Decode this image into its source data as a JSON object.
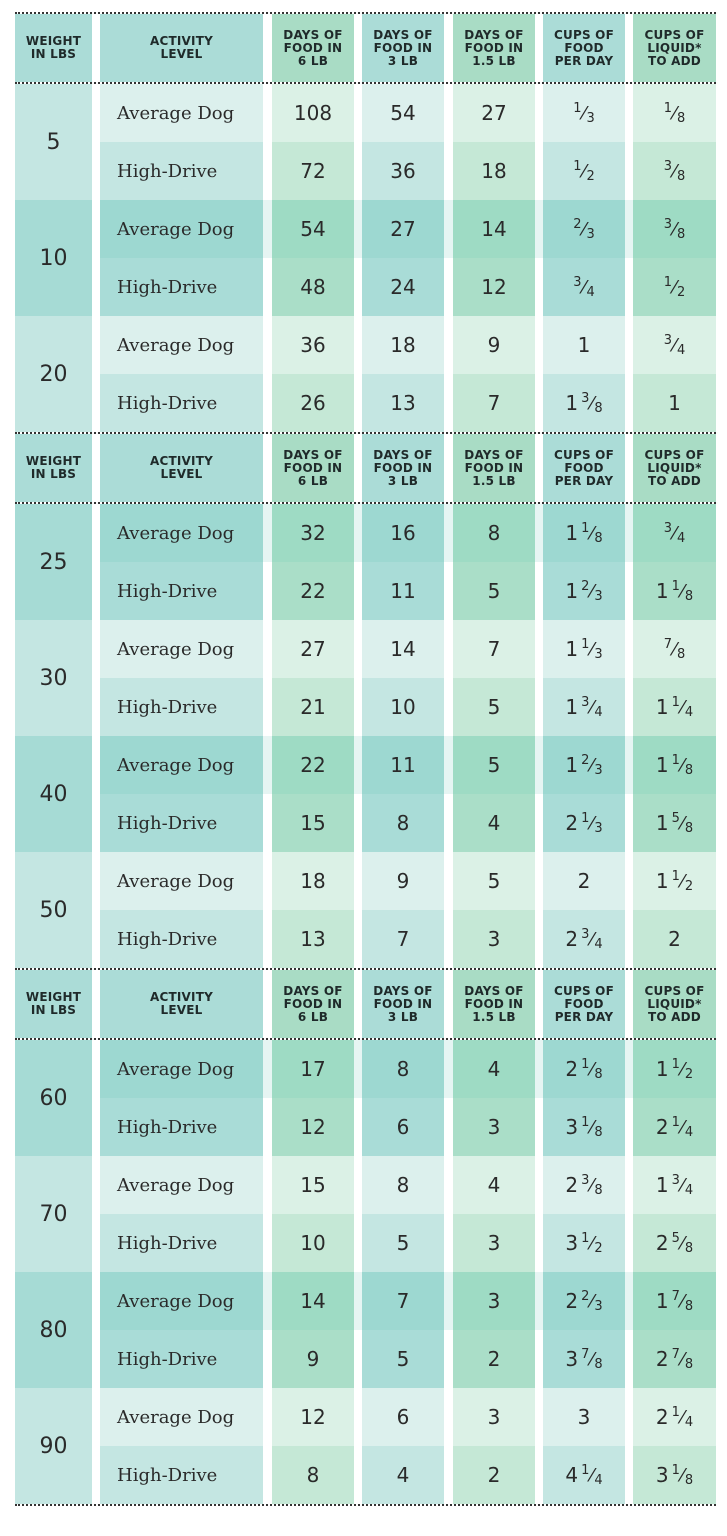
{
  "colors": {
    "teal_header": "#abdcd7",
    "green_header": "#a9dcc5",
    "teal_dark": "#9dd8d1",
    "teal_mid": "#a9dcd7",
    "teal_light": "#dcf0ed",
    "teal_light2": "#c4e6e2",
    "green_dark": "#9edbc4",
    "green_mid": "#aadec8",
    "green_light": "#dbf1e6",
    "green_light2": "#c5e8d6",
    "weight_dark": "#a6dbd5",
    "weight_light": "#c4e6e2"
  },
  "headers": {
    "weight": "WEIGHT IN LBS",
    "activity": "ACTIVITY LEVEL",
    "days_6lb": "DAYS OF FOOD IN 6 LB",
    "days_3lb": "DAYS OF FOOD IN 3 LB",
    "days_1_5lb": "DAYS OF FOOD IN 1.5 LB",
    "cups_food": "CUPS OF FOOD PER DAY",
    "cups_liquid": "CUPS OF LIQUID* TO ADD"
  },
  "sections": [
    {
      "groups": [
        {
          "weight": "5",
          "shade": "light",
          "rows": [
            {
              "activity": "Average Dog",
              "d6": "108",
              "d3": "54",
              "d15": "27",
              "cups": "1/3",
              "liquid": "1/8"
            },
            {
              "activity": "High-Drive",
              "d6": "72",
              "d3": "36",
              "d15": "18",
              "cups": "1/2",
              "liquid": "3/8"
            }
          ]
        },
        {
          "weight": "10",
          "shade": "dark",
          "rows": [
            {
              "activity": "Average Dog",
              "d6": "54",
              "d3": "27",
              "d15": "14",
              "cups": "2/3",
              "liquid": "3/8"
            },
            {
              "activity": "High-Drive",
              "d6": "48",
              "d3": "24",
              "d15": "12",
              "cups": "3/4",
              "liquid": "1/2"
            }
          ]
        },
        {
          "weight": "20",
          "shade": "light",
          "rows": [
            {
              "activity": "Average Dog",
              "d6": "36",
              "d3": "18",
              "d15": "9",
              "cups": "1",
              "liquid": "3/4"
            },
            {
              "activity": "High-Drive",
              "d6": "26",
              "d3": "13",
              "d15": "7",
              "cups": "1 3/8",
              "liquid": "1"
            }
          ]
        }
      ]
    },
    {
      "groups": [
        {
          "weight": "25",
          "shade": "dark",
          "rows": [
            {
              "activity": "Average Dog",
              "d6": "32",
              "d3": "16",
              "d15": "8",
              "cups": "1 1/8",
              "liquid": "3/4"
            },
            {
              "activity": "High-Drive",
              "d6": "22",
              "d3": "11",
              "d15": "5",
              "cups": "1 2/3",
              "liquid": "1 1/8"
            }
          ]
        },
        {
          "weight": "30",
          "shade": "light",
          "rows": [
            {
              "activity": "Average Dog",
              "d6": "27",
              "d3": "14",
              "d15": "7",
              "cups": "1 1/3",
              "liquid": "7/8"
            },
            {
              "activity": "High-Drive",
              "d6": "21",
              "d3": "10",
              "d15": "5",
              "cups": "1 3/4",
              "liquid": "1 1/4"
            }
          ]
        },
        {
          "weight": "40",
          "shade": "dark",
          "rows": [
            {
              "activity": "Average Dog",
              "d6": "22",
              "d3": "11",
              "d15": "5",
              "cups": "1 2/3",
              "liquid": "1 1/8"
            },
            {
              "activity": "High-Drive",
              "d6": "15",
              "d3": "8",
              "d15": "4",
              "cups": "2 1/3",
              "liquid": "1 5/8"
            }
          ]
        },
        {
          "weight": "50",
          "shade": "light",
          "rows": [
            {
              "activity": "Average Dog",
              "d6": "18",
              "d3": "9",
              "d15": "5",
              "cups": "2",
              "liquid": "1 1/2"
            },
            {
              "activity": "High-Drive",
              "d6": "13",
              "d3": "7",
              "d15": "3",
              "cups": "2 3/4",
              "liquid": "2"
            }
          ]
        }
      ]
    },
    {
      "groups": [
        {
          "weight": "60",
          "shade": "dark",
          "rows": [
            {
              "activity": "Average Dog",
              "d6": "17",
              "d3": "8",
              "d15": "4",
              "cups": "2 1/8",
              "liquid": "1 1/2"
            },
            {
              "activity": "High-Drive",
              "d6": "12",
              "d3": "6",
              "d15": "3",
              "cups": "3 1/8",
              "liquid": "2 1/4"
            }
          ]
        },
        {
          "weight": "70",
          "shade": "light",
          "rows": [
            {
              "activity": "Average Dog",
              "d6": "15",
              "d3": "8",
              "d15": "4",
              "cups": "2 3/8",
              "liquid": "1 3/4"
            },
            {
              "activity": "High-Drive",
              "d6": "10",
              "d3": "5",
              "d15": "3",
              "cups": "3 1/2",
              "liquid": "2 5/8"
            }
          ]
        },
        {
          "weight": "80",
          "shade": "dark",
          "rows": [
            {
              "activity": "Average Dog",
              "d6": "14",
              "d3": "7",
              "d15": "3",
              "cups": "2 2/3",
              "liquid": "1 7/8"
            },
            {
              "activity": "High-Drive",
              "d6": "9",
              "d3": "5",
              "d15": "2",
              "cups": "3 7/8",
              "liquid": "2 7/8"
            }
          ]
        },
        {
          "weight": "90",
          "shade": "light",
          "rows": [
            {
              "activity": "Average Dog",
              "d6": "12",
              "d3": "6",
              "d15": "3",
              "cups": "3",
              "liquid": "2 1/4"
            },
            {
              "activity": "High-Drive",
              "d6": "8",
              "d3": "4",
              "d15": "2",
              "cups": "4 1/4",
              "liquid": "3 1/8"
            }
          ]
        }
      ]
    }
  ],
  "chart_data": {
    "type": "table",
    "title": "",
    "columns": [
      "Weight in lbs",
      "Activity Level",
      "Days of Food in 6 lb",
      "Days of Food in 3 lb",
      "Days of Food in 1.5 lb",
      "Cups of Food per Day",
      "Cups of Liquid* to Add"
    ],
    "rows": [
      [
        "5",
        "Average Dog",
        108,
        54,
        27,
        "1/3",
        "1/8"
      ],
      [
        "5",
        "High-Drive",
        72,
        36,
        18,
        "1/2",
        "3/8"
      ],
      [
        "10",
        "Average Dog",
        54,
        27,
        14,
        "2/3",
        "3/8"
      ],
      [
        "10",
        "High-Drive",
        48,
        24,
        12,
        "3/4",
        "1/2"
      ],
      [
        "20",
        "Average Dog",
        36,
        18,
        9,
        "1",
        "3/4"
      ],
      [
        "20",
        "High-Drive",
        26,
        13,
        7,
        "1 3/8",
        "1"
      ],
      [
        "25",
        "Average Dog",
        32,
        16,
        8,
        "1 1/8",
        "3/4"
      ],
      [
        "25",
        "High-Drive",
        22,
        11,
        5,
        "1 2/3",
        "1 1/8"
      ],
      [
        "30",
        "Average Dog",
        27,
        14,
        7,
        "1 1/3",
        "7/8"
      ],
      [
        "30",
        "High-Drive",
        21,
        10,
        5,
        "1 3/4",
        "1 1/4"
      ],
      [
        "40",
        "Average Dog",
        22,
        11,
        5,
        "1 2/3",
        "1 1/8"
      ],
      [
        "40",
        "High-Drive",
        15,
        8,
        4,
        "2 1/3",
        "1 5/8"
      ],
      [
        "50",
        "Average Dog",
        18,
        9,
        5,
        "2",
        "1 1/2"
      ],
      [
        "50",
        "High-Drive",
        13,
        7,
        3,
        "2 3/4",
        "2"
      ],
      [
        "60",
        "Average Dog",
        17,
        8,
        4,
        "2 1/8",
        "1 1/2"
      ],
      [
        "60",
        "High-Drive",
        12,
        6,
        3,
        "3 1/8",
        "2 1/4"
      ],
      [
        "70",
        "Average Dog",
        15,
        8,
        4,
        "2 3/8",
        "1 3/4"
      ],
      [
        "70",
        "High-Drive",
        10,
        5,
        3,
        "3 1/2",
        "2 5/8"
      ],
      [
        "80",
        "Average Dog",
        14,
        7,
        3,
        "2 2/3",
        "1 7/8"
      ],
      [
        "80",
        "High-Drive",
        9,
        5,
        2,
        "3 7/8",
        "2 7/8"
      ],
      [
        "90",
        "Average Dog",
        12,
        6,
        3,
        "3",
        "2 1/4"
      ],
      [
        "90",
        "High-Drive",
        8,
        4,
        2,
        "4 1/4",
        "3 1/8"
      ]
    ]
  }
}
